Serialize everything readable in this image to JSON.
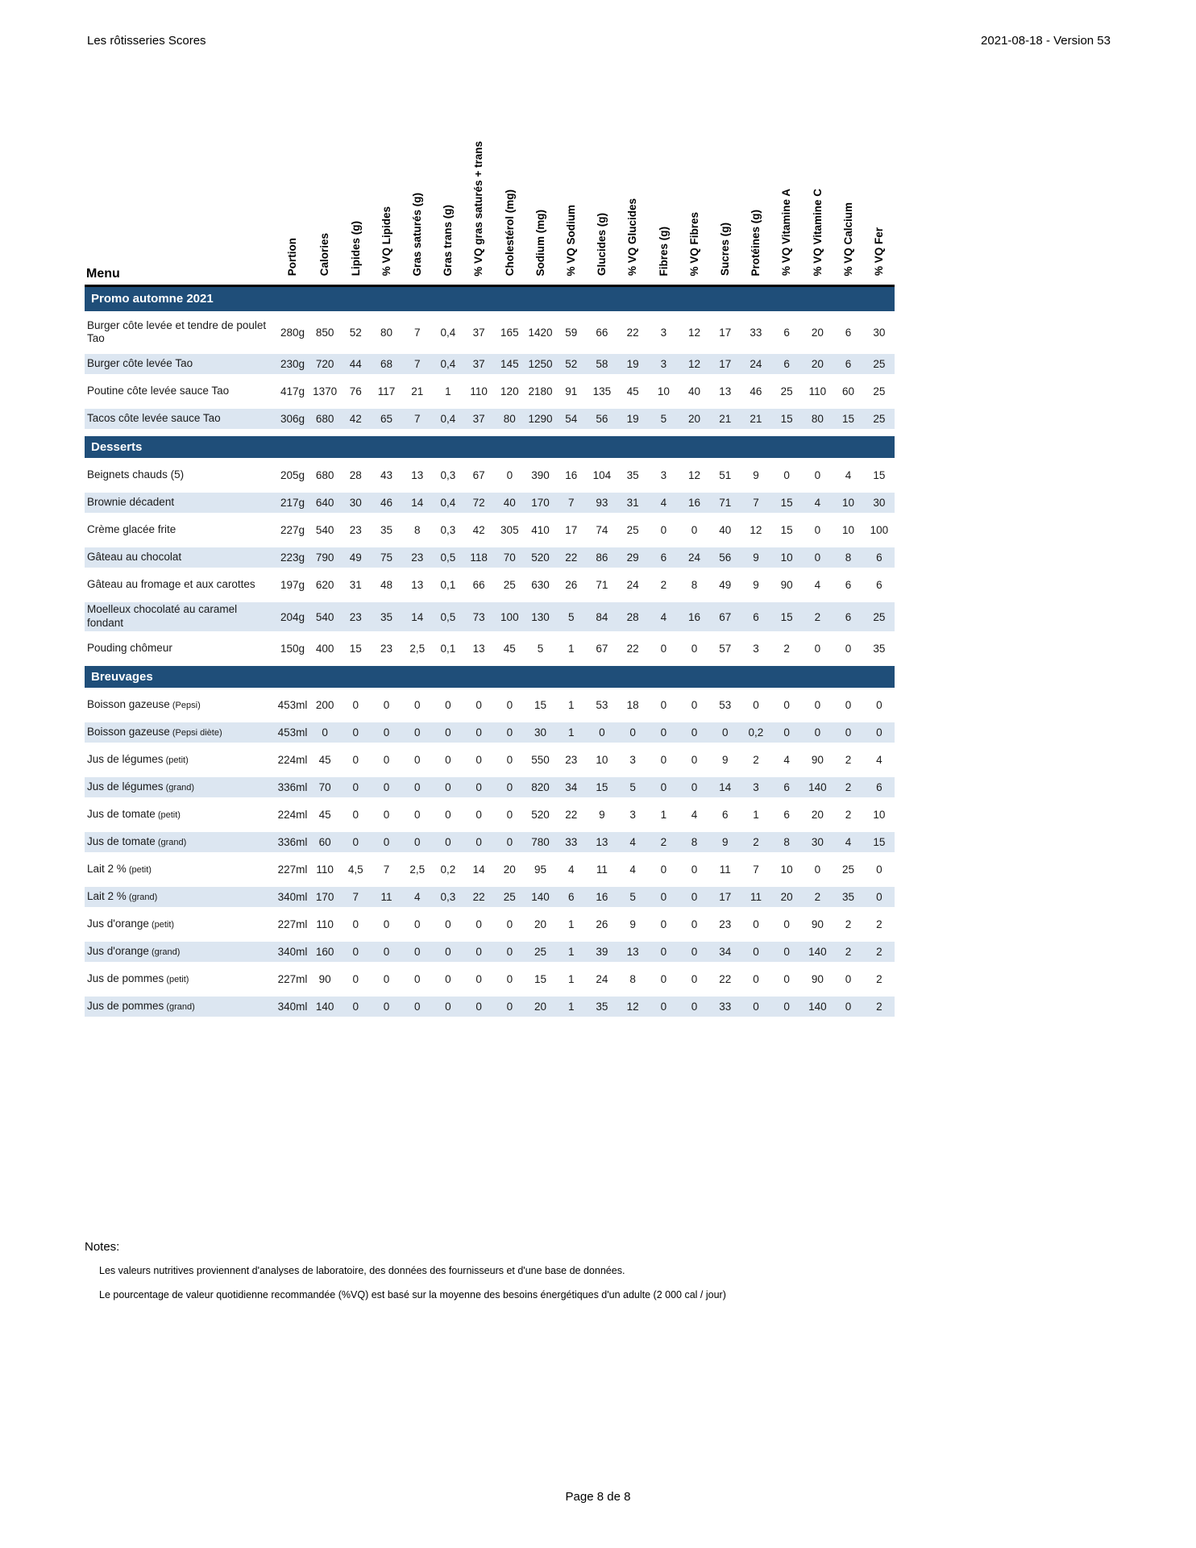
{
  "header": {
    "left": "Les rôtisseries Scores",
    "right": "2021-08-18 - Version 53"
  },
  "table": {
    "menu_header": "Menu",
    "columns": [
      "Portion",
      "Calories",
      "Lipides (g)",
      "% VQ Lipides",
      "Gras saturés (g)",
      "Gras trans (g)",
      "% VQ gras saturés + trans",
      "Cholestérol (mg)",
      "Sodium (mg)",
      "% VQ Sodium",
      "Glucides (g)",
      "% VQ Glucides",
      "Fibres (g)",
      "% VQ Fibres",
      "Sucres (g)",
      "Protéines (g)",
      "% VQ Vitamine A",
      "% VQ Vitamine C",
      "% VQ Calcium",
      "% VQ Fer"
    ],
    "sections": [
      {
        "title": "Promo automne 2021",
        "rows": [
          {
            "name": "Burger côte levée et tendre de poulet Tao",
            "note": "",
            "values": [
              "280g",
              "850",
              "52",
              "80",
              "7",
              "0,4",
              "37",
              "165",
              "1420",
              "59",
              "66",
              "22",
              "3",
              "12",
              "17",
              "33",
              "6",
              "20",
              "6",
              "30"
            ]
          },
          {
            "name": "Burger côte levée Tao",
            "note": "",
            "values": [
              "230g",
              "720",
              "44",
              "68",
              "7",
              "0,4",
              "37",
              "145",
              "1250",
              "52",
              "58",
              "19",
              "3",
              "12",
              "17",
              "24",
              "6",
              "20",
              "6",
              "25"
            ]
          },
          {
            "name": "Poutine côte levée sauce Tao",
            "note": "",
            "values": [
              "417g",
              "1370",
              "76",
              "117",
              "21",
              "1",
              "110",
              "120",
              "2180",
              "91",
              "135",
              "45",
              "10",
              "40",
              "13",
              "46",
              "25",
              "110",
              "60",
              "25"
            ]
          },
          {
            "name": "Tacos côte levée sauce Tao",
            "note": "",
            "values": [
              "306g",
              "680",
              "42",
              "65",
              "7",
              "0,4",
              "37",
              "80",
              "1290",
              "54",
              "56",
              "19",
              "5",
              "20",
              "21",
              "21",
              "15",
              "80",
              "15",
              "25"
            ]
          }
        ]
      },
      {
        "title": "Desserts",
        "rows": [
          {
            "name": "Beignets chauds (5)",
            "note": "",
            "values": [
              "205g",
              "680",
              "28",
              "43",
              "13",
              "0,3",
              "67",
              "0",
              "390",
              "16",
              "104",
              "35",
              "3",
              "12",
              "51",
              "9",
              "0",
              "0",
              "4",
              "15"
            ]
          },
          {
            "name": "Brownie décadent",
            "note": "",
            "values": [
              "217g",
              "640",
              "30",
              "46",
              "14",
              "0,4",
              "72",
              "40",
              "170",
              "7",
              "93",
              "31",
              "4",
              "16",
              "71",
              "7",
              "15",
              "4",
              "10",
              "30"
            ]
          },
          {
            "name": "Crème glacée frite",
            "note": "",
            "values": [
              "227g",
              "540",
              "23",
              "35",
              "8",
              "0,3",
              "42",
              "305",
              "410",
              "17",
              "74",
              "25",
              "0",
              "0",
              "40",
              "12",
              "15",
              "0",
              "10",
              "100"
            ]
          },
          {
            "name": "Gâteau au chocolat",
            "note": "",
            "values": [
              "223g",
              "790",
              "49",
              "75",
              "23",
              "0,5",
              "118",
              "70",
              "520",
              "22",
              "86",
              "29",
              "6",
              "24",
              "56",
              "9",
              "10",
              "0",
              "8",
              "6"
            ]
          },
          {
            "name": "Gâteau au fromage et aux carottes",
            "note": "",
            "values": [
              "197g",
              "620",
              "31",
              "48",
              "13",
              "0,1",
              "66",
              "25",
              "630",
              "26",
              "71",
              "24",
              "2",
              "8",
              "49",
              "9",
              "90",
              "4",
              "6",
              "6"
            ]
          },
          {
            "name": "Moelleux chocolaté au caramel fondant",
            "note": "",
            "values": [
              "204g",
              "540",
              "23",
              "35",
              "14",
              "0,5",
              "73",
              "100",
              "130",
              "5",
              "84",
              "28",
              "4",
              "16",
              "67",
              "6",
              "15",
              "2",
              "6",
              "25"
            ]
          },
          {
            "name": "Pouding chômeur",
            "note": "",
            "values": [
              "150g",
              "400",
              "15",
              "23",
              "2,5",
              "0,1",
              "13",
              "45",
              "5",
              "1",
              "67",
              "22",
              "0",
              "0",
              "57",
              "3",
              "2",
              "0",
              "0",
              "35"
            ]
          }
        ]
      },
      {
        "title": "Breuvages",
        "rows": [
          {
            "name": "Boisson gazeuse",
            "note": "(Pepsi)",
            "values": [
              "453ml",
              "200",
              "0",
              "0",
              "0",
              "0",
              "0",
              "0",
              "15",
              "1",
              "53",
              "18",
              "0",
              "0",
              "53",
              "0",
              "0",
              "0",
              "0",
              "0"
            ]
          },
          {
            "name": "Boisson gazeuse",
            "note": "(Pepsi diète)",
            "values": [
              "453ml",
              "0",
              "0",
              "0",
              "0",
              "0",
              "0",
              "0",
              "30",
              "1",
              "0",
              "0",
              "0",
              "0",
              "0",
              "0,2",
              "0",
              "0",
              "0",
              "0"
            ]
          },
          {
            "name": "Jus de légumes",
            "note": "(petit)",
            "values": [
              "224ml",
              "45",
              "0",
              "0",
              "0",
              "0",
              "0",
              "0",
              "550",
              "23",
              "10",
              "3",
              "0",
              "0",
              "9",
              "2",
              "4",
              "90",
              "2",
              "4"
            ]
          },
          {
            "name": "Jus de légumes",
            "note": "(grand)",
            "values": [
              "336ml",
              "70",
              "0",
              "0",
              "0",
              "0",
              "0",
              "0",
              "820",
              "34",
              "15",
              "5",
              "0",
              "0",
              "14",
              "3",
              "6",
              "140",
              "2",
              "6"
            ]
          },
          {
            "name": "Jus de tomate",
            "note": "(petit)",
            "values": [
              "224ml",
              "45",
              "0",
              "0",
              "0",
              "0",
              "0",
              "0",
              "520",
              "22",
              "9",
              "3",
              "1",
              "4",
              "6",
              "1",
              "6",
              "20",
              "2",
              "10"
            ]
          },
          {
            "name": "Jus de tomate",
            "note": "(grand)",
            "values": [
              "336ml",
              "60",
              "0",
              "0",
              "0",
              "0",
              "0",
              "0",
              "780",
              "33",
              "13",
              "4",
              "2",
              "8",
              "9",
              "2",
              "8",
              "30",
              "4",
              "15"
            ]
          },
          {
            "name": "Lait 2 %",
            "note": "(petit)",
            "values": [
              "227ml",
              "110",
              "4,5",
              "7",
              "2,5",
              "0,2",
              "14",
              "20",
              "95",
              "4",
              "11",
              "4",
              "0",
              "0",
              "11",
              "7",
              "10",
              "0",
              "25",
              "0"
            ]
          },
          {
            "name": "Lait 2 %",
            "note": "(grand)",
            "values": [
              "340ml",
              "170",
              "7",
              "11",
              "4",
              "0,3",
              "22",
              "25",
              "140",
              "6",
              "16",
              "5",
              "0",
              "0",
              "17",
              "11",
              "20",
              "2",
              "35",
              "0"
            ]
          },
          {
            "name": "Jus d'orange",
            "note": "(petit)",
            "values": [
              "227ml",
              "110",
              "0",
              "0",
              "0",
              "0",
              "0",
              "0",
              "20",
              "1",
              "26",
              "9",
              "0",
              "0",
              "23",
              "0",
              "0",
              "90",
              "2",
              "2"
            ]
          },
          {
            "name": "Jus d'orange",
            "note": "(grand)",
            "values": [
              "340ml",
              "160",
              "0",
              "0",
              "0",
              "0",
              "0",
              "0",
              "25",
              "1",
              "39",
              "13",
              "0",
              "0",
              "34",
              "0",
              "0",
              "140",
              "2",
              "2"
            ]
          },
          {
            "name": "Jus de pommes",
            "note": "(petit)",
            "values": [
              "227ml",
              "90",
              "0",
              "0",
              "0",
              "0",
              "0",
              "0",
              "15",
              "1",
              "24",
              "8",
              "0",
              "0",
              "22",
              "0",
              "0",
              "90",
              "0",
              "2"
            ]
          },
          {
            "name": "Jus de pommes",
            "note": "(grand)",
            "values": [
              "340ml",
              "140",
              "0",
              "0",
              "0",
              "0",
              "0",
              "0",
              "20",
              "1",
              "35",
              "12",
              "0",
              "0",
              "33",
              "0",
              "0",
              "140",
              "0",
              "2"
            ]
          }
        ]
      }
    ]
  },
  "notes": {
    "title": "Notes:",
    "lines": [
      "Les valeurs nutritives proviennent d'analyses de laboratoire, des données des fournisseurs et d'une base de données.",
      "Le pourcentage de valeur quotidienne recommandée (%VQ) est basé sur la moyenne des besoins énergétiques d'un adulte (2 000 cal / jour)"
    ]
  },
  "footer": {
    "page": "Page 8 de 8"
  },
  "colors": {
    "section_bar": "#1F4E79",
    "row_stripe": "#DCE6F1",
    "header_rule": "#000000",
    "section_text": "#FFFFFF"
  }
}
